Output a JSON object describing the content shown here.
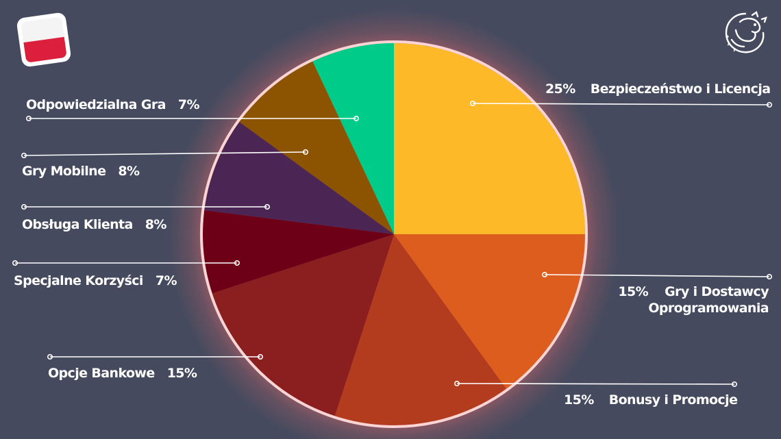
{
  "colors": {
    "background": "#454a5e",
    "pie_border": "#fbd4d4",
    "glow": "#ff6f6f",
    "leader": "#ffffff",
    "text": "#ffffff"
  },
  "icons": {
    "flag": "poland-flag-icon",
    "logo": "dragon-logo-icon"
  },
  "chart_data": {
    "type": "pie",
    "start": "12 o'clock",
    "direction": "clockwise",
    "slices": [
      {
        "label": "Bezpieczeństwo i Licencja",
        "value": 25,
        "value_label": "25%",
        "color": "#fdb927"
      },
      {
        "label_line1": "Gry i Dostawcy",
        "label_line2": "Oprogramowania",
        "value": 15,
        "value_label": "15%",
        "color": "#dd5d1f"
      },
      {
        "label": "Bonusy i Promocje",
        "value": 15,
        "value_label": "15%",
        "color": "#b33c1f"
      },
      {
        "label": "Opcje Bankowe",
        "value": 15,
        "value_label": "15%",
        "color": "#8b1e1e"
      },
      {
        "label": "Specjalne Korzyści",
        "value": 7,
        "value_label": "7%",
        "color": "#6d0017"
      },
      {
        "label": "Obsługa Klienta",
        "value": 8,
        "value_label": "8%",
        "color": "#4b2655"
      },
      {
        "label": "Gry Mobilne",
        "value": 8,
        "value_label": "8%",
        "color": "#8c5300"
      },
      {
        "label": "Odpowiedzialna Gra",
        "value": 7,
        "value_label": "7%",
        "color": "#00cb88"
      }
    ]
  }
}
